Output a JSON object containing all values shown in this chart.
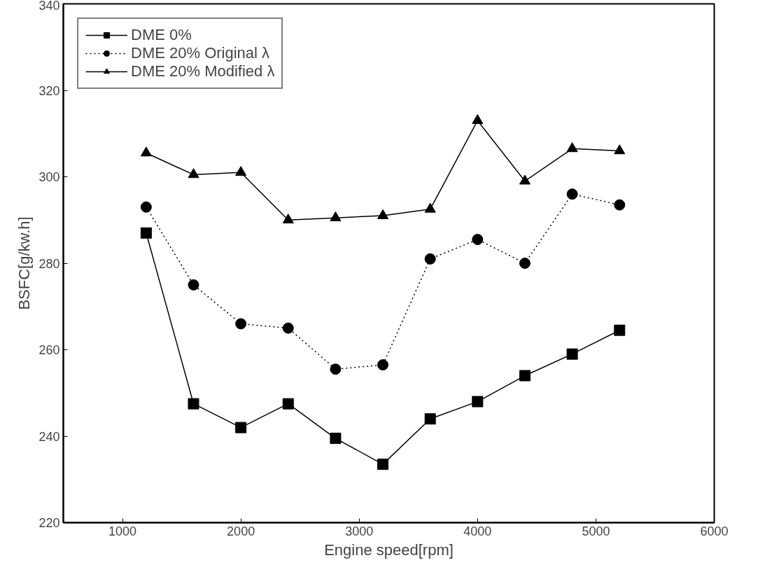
{
  "chart_data": {
    "type": "line",
    "xlabel": "Engine speed[rpm]",
    "ylabel": "BSFC[g/kw.h]",
    "x": [
      1200,
      1600,
      2000,
      2400,
      2800,
      3200,
      3600,
      4000,
      4400,
      4800,
      5200
    ],
    "series": [
      {
        "name": "DME 0%",
        "color": "#000000",
        "marker": "square",
        "line_style": "solid",
        "values": [
          287,
          247.5,
          242,
          247.5,
          239.5,
          233.5,
          244,
          248,
          254,
          259,
          264.5
        ]
      },
      {
        "name": "DME 20% Original λ",
        "color": "#000000",
        "marker": "circle",
        "line_style": "dotted",
        "values": [
          293,
          275,
          266,
          265,
          255.5,
          256.5,
          281,
          285.5,
          280,
          296,
          293.5
        ]
      },
      {
        "name": "DME 20% Modified λ",
        "color": "#000000",
        "marker": "triangle",
        "line_style": "solid",
        "values": [
          305.5,
          300.5,
          301,
          290,
          290.5,
          291,
          292.5,
          313,
          299,
          306.5,
          306
        ]
      }
    ],
    "xlim": [
      500,
      6000
    ],
    "ylim": [
      220,
      340
    ],
    "xticks": [
      1000,
      2000,
      3000,
      4000,
      5000,
      6000
    ],
    "yticks": [
      220,
      240,
      260,
      280,
      300,
      320,
      340
    ],
    "grid": false,
    "legend": "top left"
  }
}
